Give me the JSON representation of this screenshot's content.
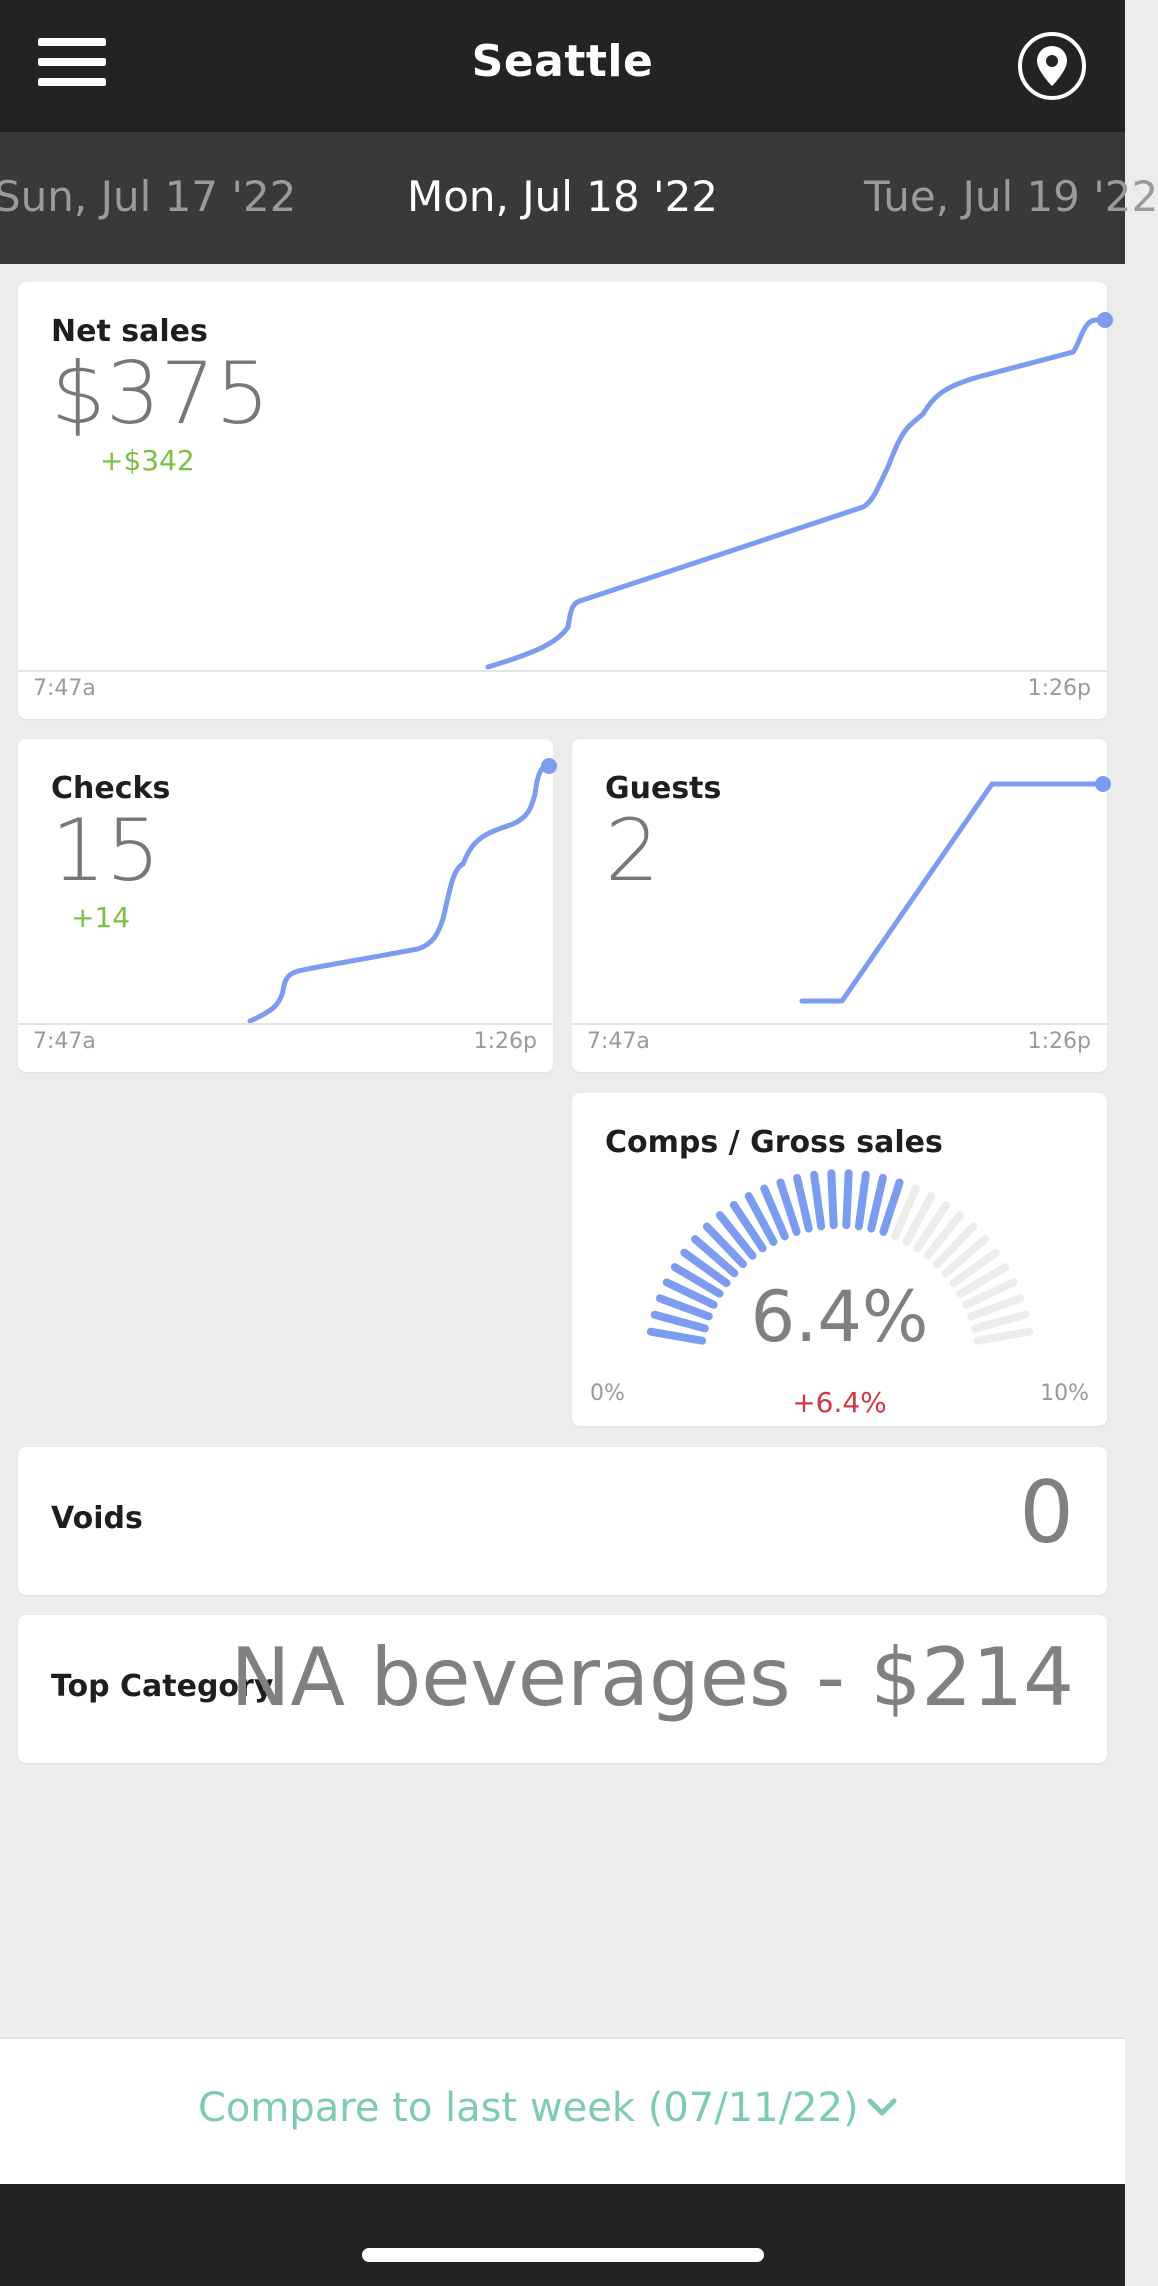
{
  "header": {
    "title": "Seattle",
    "menu_icon": "hamburger-menu-icon",
    "location_icon": "location-pin-icon"
  },
  "dates": {
    "previous": "Sun, Jul 17 '22",
    "current": "Mon, Jul 18 '22",
    "next": "Tue, Jul 19 '22"
  },
  "colors": {
    "line": "#7b9cef",
    "positive": "#7bc043",
    "negative": "#d13a45",
    "compare": "#7ecbb2"
  },
  "net_sales": {
    "title": "Net sales",
    "value": "$375",
    "delta": "+$342",
    "x_start": "7:47a",
    "x_end": "1:26p"
  },
  "checks": {
    "title": "Checks",
    "value": "15",
    "delta": "+14",
    "x_start": "7:47a",
    "x_end": "1:26p"
  },
  "guests": {
    "title": "Guests",
    "value": "2",
    "x_start": "7:47a",
    "x_end": "1:26p"
  },
  "comps": {
    "title": "Comps / Gross sales",
    "value": "6.4%",
    "delta": "+6.4%",
    "min_label": "0%",
    "max_label": "10%",
    "fill_fraction": 0.64
  },
  "voids": {
    "label": "Voids",
    "value": "0"
  },
  "top_category": {
    "label": "Top Category",
    "value": "NA beverages - $214"
  },
  "compare": {
    "label": "Compare to last week (07/11/22)",
    "icon": "chevron-down-icon"
  }
}
